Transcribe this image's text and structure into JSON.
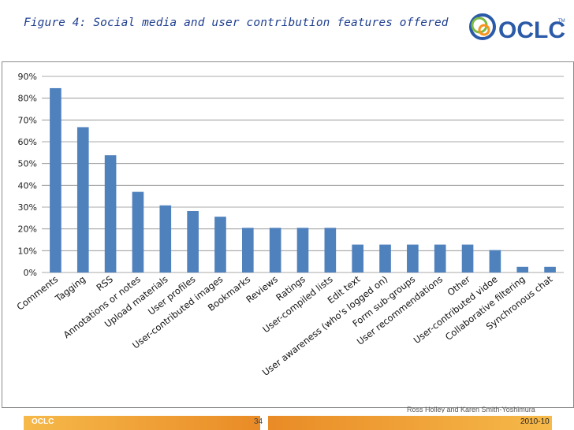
{
  "header": {
    "title": "Figure 4: Social media and user contribution features offered",
    "logo_text": "OCLC",
    "logo_mark": "TM"
  },
  "footer": {
    "logo_text": "OCLC",
    "page_number": "34",
    "date": "2010-10",
    "credit": "Ross Holley and Karen Smith-Yoshimura"
  },
  "colors": {
    "bar": "#4f81bd",
    "title": "#1f3f8f",
    "footer_band": "#e98b26",
    "logo_blue": "#2a5aa8",
    "logo_green": "#7dbb42",
    "logo_orange": "#f7941d"
  },
  "chart_data": {
    "type": "bar",
    "title": "",
    "xlabel": "",
    "ylabel": "",
    "ylim": [
      0,
      0.9
    ],
    "yticks": [
      "0%",
      "10%",
      "20%",
      "30%",
      "40%",
      "50%",
      "60%",
      "70%",
      "80%",
      "90%"
    ],
    "grid": true,
    "legend": "none",
    "categories": [
      "Comments",
      "Tagging",
      "RSS",
      "Annotations or notes",
      "Upload materials",
      "User profiles",
      "User-contributed images",
      "Bookmarks",
      "Reviews",
      "Ratings",
      "User-compiled lists",
      "Edit text",
      "User awareness (who's logged on)",
      "Form sub-groups",
      "User recommendations",
      "Other",
      "User-contributed vidoe",
      "Collaborative filtering",
      "Synchronous chat"
    ],
    "values": [
      0.846,
      0.667,
      0.538,
      0.37,
      0.308,
      0.282,
      0.256,
      0.205,
      0.205,
      0.205,
      0.205,
      0.128,
      0.128,
      0.128,
      0.128,
      0.128,
      0.103,
      0.026,
      0.026
    ]
  }
}
